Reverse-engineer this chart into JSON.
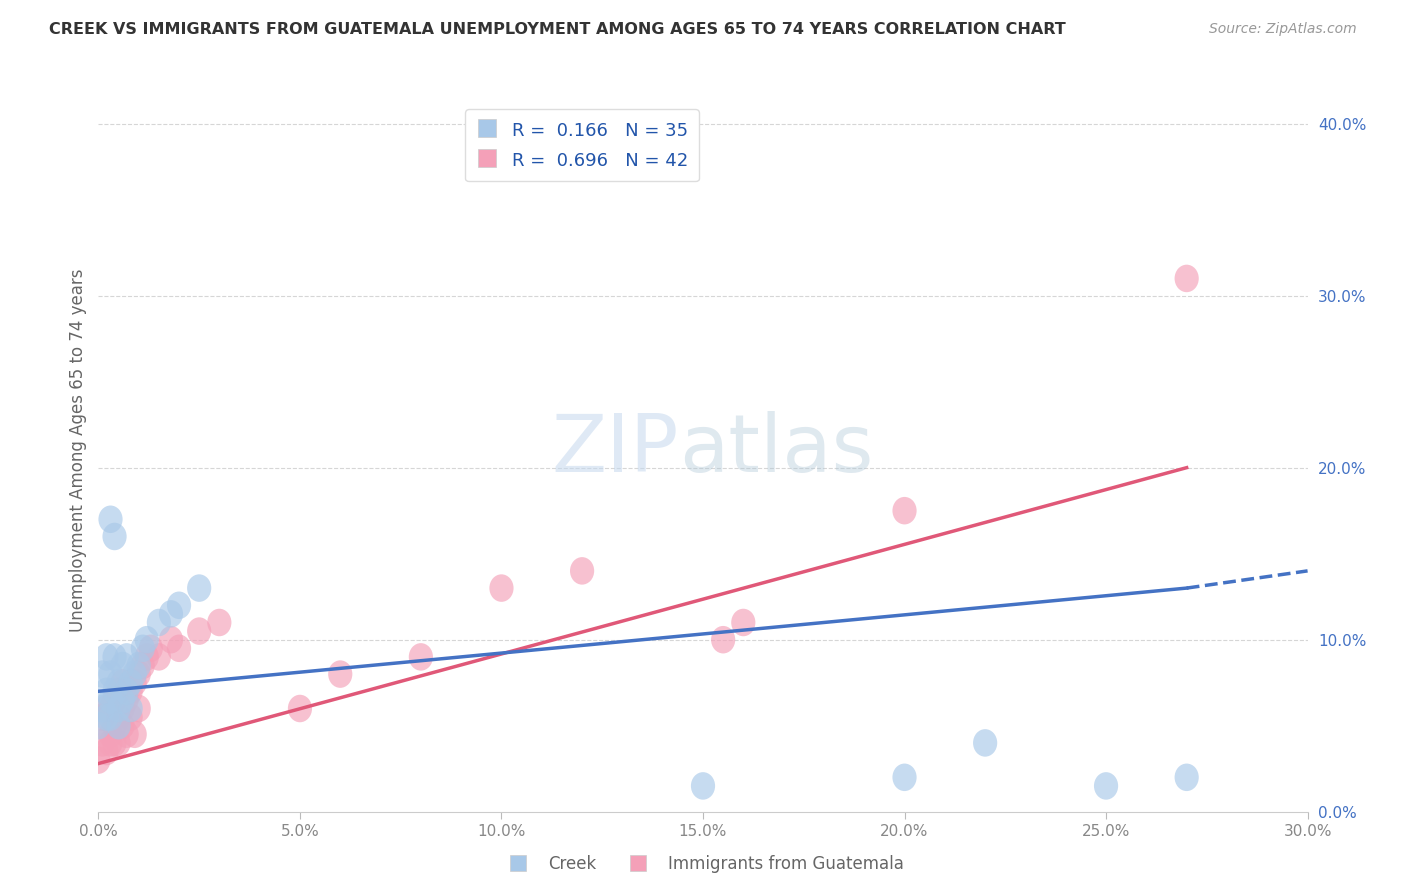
{
  "title": "CREEK VS IMMIGRANTS FROM GUATEMALA UNEMPLOYMENT AMONG AGES 65 TO 74 YEARS CORRELATION CHART",
  "source": "Source: ZipAtlas.com",
  "ylabel": "Unemployment Among Ages 65 to 74 years",
  "legend_bottom": [
    "Creek",
    "Immigrants from Guatemala"
  ],
  "creek": {
    "R": 0.166,
    "N": 35,
    "color": "#a8c8e8",
    "line_color": "#4472c4",
    "x": [
      0.0,
      0.001,
      0.001,
      0.002,
      0.002,
      0.002,
      0.003,
      0.003,
      0.003,
      0.004,
      0.004,
      0.005,
      0.005,
      0.005,
      0.006,
      0.006,
      0.007,
      0.007,
      0.008,
      0.008,
      0.009,
      0.01,
      0.011,
      0.012,
      0.015,
      0.018,
      0.02,
      0.025,
      0.15,
      0.2,
      0.22,
      0.25,
      0.27,
      0.003,
      0.004
    ],
    "y": [
      0.05,
      0.06,
      0.08,
      0.07,
      0.055,
      0.09,
      0.065,
      0.08,
      0.055,
      0.07,
      0.09,
      0.06,
      0.075,
      0.05,
      0.085,
      0.065,
      0.07,
      0.09,
      0.075,
      0.06,
      0.08,
      0.085,
      0.095,
      0.1,
      0.11,
      0.115,
      0.12,
      0.13,
      0.015,
      0.02,
      0.04,
      0.015,
      0.02,
      0.17,
      0.16
    ]
  },
  "guatemala": {
    "R": 0.696,
    "N": 42,
    "color": "#f4a0b8",
    "line_color": "#e05878",
    "x": [
      0.0,
      0.001,
      0.001,
      0.002,
      0.002,
      0.003,
      0.003,
      0.003,
      0.004,
      0.004,
      0.004,
      0.005,
      0.005,
      0.005,
      0.006,
      0.006,
      0.006,
      0.007,
      0.007,
      0.008,
      0.008,
      0.009,
      0.009,
      0.01,
      0.01,
      0.011,
      0.012,
      0.013,
      0.015,
      0.018,
      0.02,
      0.025,
      0.03,
      0.05,
      0.06,
      0.08,
      0.1,
      0.12,
      0.155,
      0.16,
      0.2,
      0.27
    ],
    "y": [
      0.03,
      0.04,
      0.055,
      0.035,
      0.06,
      0.045,
      0.06,
      0.04,
      0.05,
      0.065,
      0.04,
      0.055,
      0.07,
      0.04,
      0.06,
      0.075,
      0.05,
      0.065,
      0.045,
      0.07,
      0.055,
      0.075,
      0.045,
      0.08,
      0.06,
      0.085,
      0.09,
      0.095,
      0.09,
      0.1,
      0.095,
      0.105,
      0.11,
      0.06,
      0.08,
      0.09,
      0.13,
      0.14,
      0.1,
      0.11,
      0.175,
      0.31
    ]
  },
  "creek_line": {
    "x0": 0.0,
    "y0": 0.07,
    "x1": 0.27,
    "y1": 0.13,
    "xd0": 0.27,
    "yd0": 0.13,
    "xd1": 0.3,
    "yd1": 0.14
  },
  "guat_line": {
    "x0": 0.0,
    "y0": 0.028,
    "x1": 0.27,
    "y1": 0.2
  },
  "xlim": [
    0.0,
    0.3
  ],
  "ylim": [
    0.0,
    0.42
  ],
  "xtick_vals": [
    0.0,
    0.05,
    0.1,
    0.15,
    0.2,
    0.25,
    0.3
  ],
  "ytick_vals": [
    0.0,
    0.1,
    0.2,
    0.3,
    0.4
  ],
  "watermark_zip": "ZIP",
  "watermark_atlas": "atlas",
  "background_color": "#ffffff",
  "grid_color": "#cccccc",
  "title_color": "#333333",
  "source_color": "#999999",
  "axis_label_color": "#666666",
  "tick_color": "#888888",
  "right_tick_color": "#4472c4"
}
